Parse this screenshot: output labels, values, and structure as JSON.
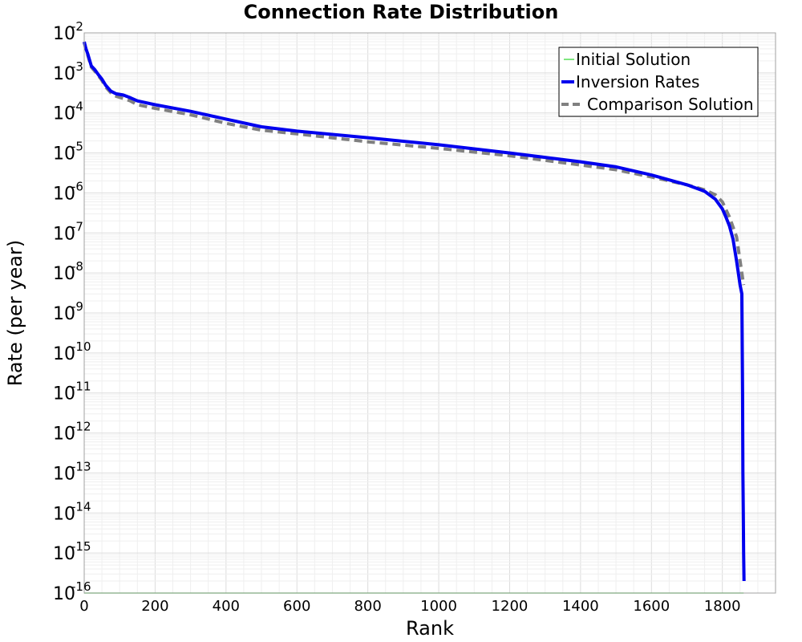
{
  "chart_data": {
    "type": "line",
    "title": "Connection Rate Distribution",
    "xlabel": "Rank",
    "ylabel": "Rate (per year)",
    "xlim": [
      0,
      1950
    ],
    "ylim": [
      1e-16,
      0.01
    ],
    "y_scale": "log",
    "grid": true,
    "legend_position": "top-right",
    "x_ticks": [
      "0",
      "200",
      "400",
      "600",
      "800",
      "1000",
      "1200",
      "1400",
      "1600",
      "1800"
    ],
    "y_ticks": [
      {
        "base": "10",
        "exp": "-2"
      },
      {
        "base": "10",
        "exp": "-3"
      },
      {
        "base": "10",
        "exp": "-4"
      },
      {
        "base": "10",
        "exp": "-5"
      },
      {
        "base": "10",
        "exp": "-6"
      },
      {
        "base": "10",
        "exp": "-7"
      },
      {
        "base": "10",
        "exp": "-8"
      },
      {
        "base": "10",
        "exp": "-9"
      },
      {
        "base": "10",
        "exp": "-10"
      },
      {
        "base": "10",
        "exp": "-11"
      },
      {
        "base": "10",
        "exp": "-12"
      },
      {
        "base": "10",
        "exp": "-13"
      },
      {
        "base": "10",
        "exp": "-14"
      },
      {
        "base": "10",
        "exp": "-15"
      },
      {
        "base": "10",
        "exp": "-16"
      }
    ],
    "series": [
      {
        "name": "Initial Solution",
        "color": "#00cc00",
        "style": "solid-thin",
        "x": [
          0,
          1860
        ],
        "y": [
          1e-16,
          1e-16
        ]
      },
      {
        "name": "Inversion Rates",
        "color": "#0000ee",
        "style": "solid-thick",
        "x": [
          0,
          5,
          10,
          20,
          30,
          40,
          50,
          60,
          75,
          90,
          110,
          130,
          150,
          200,
          300,
          400,
          500,
          600,
          800,
          1000,
          1200,
          1400,
          1500,
          1600,
          1700,
          1750,
          1780,
          1800,
          1810,
          1820,
          1830,
          1840,
          1845,
          1850,
          1855,
          1857,
          1858,
          1859,
          1860,
          1861
        ],
        "y": [
          0.006,
          0.004,
          0.003,
          0.0015,
          0.0012,
          0.0009,
          0.0007,
          0.0005,
          0.00035,
          0.0003,
          0.00028,
          0.00024,
          0.0002,
          0.00016,
          0.00011,
          7e-05,
          4.5e-05,
          3.5e-05,
          2.4e-05,
          1.6e-05,
          1e-05,
          6e-06,
          4.5e-06,
          2.8e-06,
          1.6e-06,
          1.1e-06,
          7e-07,
          4e-07,
          2.5e-07,
          1.5e-07,
          7e-08,
          2e-08,
          1e-08,
          5e-09,
          3e-09,
          1e-11,
          1e-13,
          1e-14,
          1e-15,
          2e-16
        ]
      },
      {
        "name": "Comparison Solution",
        "color": "#808080",
        "style": "dashed",
        "x": [
          0,
          5,
          10,
          20,
          30,
          40,
          50,
          60,
          75,
          90,
          110,
          130,
          150,
          200,
          300,
          400,
          500,
          600,
          800,
          1000,
          1200,
          1400,
          1500,
          1600,
          1700,
          1750,
          1780,
          1800,
          1820,
          1840,
          1850,
          1860
        ],
        "y": [
          0.006,
          0.0035,
          0.0028,
          0.0014,
          0.0011,
          0.00085,
          0.00065,
          0.00045,
          0.00032,
          0.00026,
          0.00023,
          0.0002,
          0.00016,
          0.00013,
          9e-05,
          5.5e-05,
          3.7e-05,
          3e-05,
          1.9e-05,
          1.3e-05,
          8.5e-06,
          5e-06,
          3.8e-06,
          2.5e-06,
          1.6e-06,
          1.2e-06,
          9e-07,
          6e-07,
          2.5e-07,
          8e-08,
          2e-08,
          5e-09
        ]
      }
    ]
  },
  "legend": {
    "entries": [
      "Initial Solution",
      "Inversion Rates",
      "Comparison Solution"
    ]
  }
}
